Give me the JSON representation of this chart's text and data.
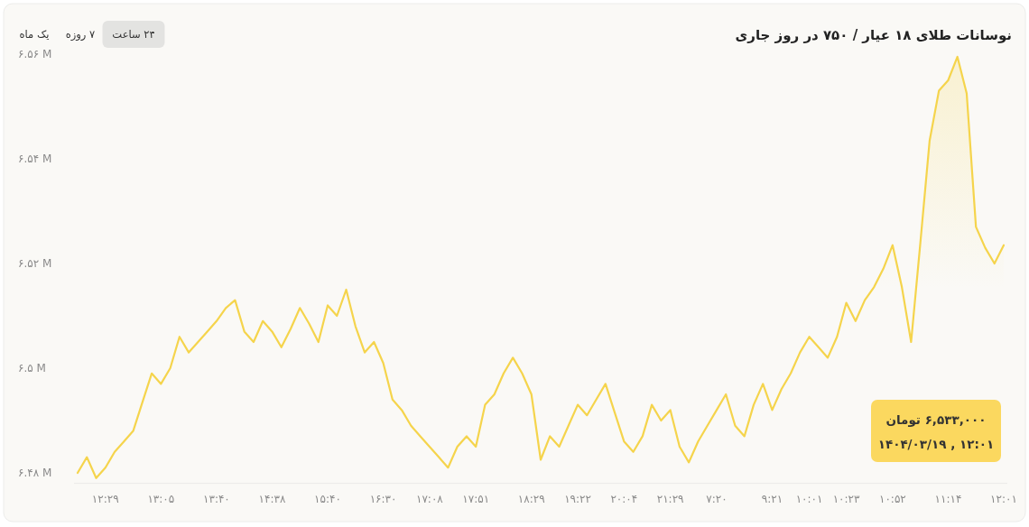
{
  "chart_data": {
    "type": "area",
    "title": "نوسانات طلای ۱۸ عیار / ۷۵۰ در روز جاری",
    "annotations": [
      "یک ماه",
      "۷ روزه",
      "۲۴ ساعت",
      "۶,۵۳۳,۰۰۰ تومان",
      "۱۴۰۴/۰۳/۱۹ , ۱۲:۰۱"
    ],
    "categories": [
      null,
      null,
      null,
      "۱۲:۲۹",
      null,
      null,
      null,
      null,
      null,
      "۱۳:۰۵",
      null,
      null,
      null,
      null,
      null,
      "۱۳:۴۰",
      null,
      null,
      null,
      null,
      null,
      "۱۴:۳۸",
      null,
      null,
      null,
      null,
      null,
      "۱۵:۴۰",
      null,
      null,
      null,
      null,
      null,
      "۱۶:۳۰",
      null,
      null,
      null,
      null,
      "۱۷:۰۸",
      null,
      null,
      null,
      null,
      "۱۷:۵۱",
      null,
      null,
      null,
      null,
      null,
      "۱۸:۲۹",
      null,
      null,
      null,
      null,
      "۱۹:۲۲",
      null,
      null,
      null,
      null,
      "۲۰:۰۴",
      null,
      null,
      null,
      null,
      "۲۱:۲۹",
      null,
      null,
      null,
      null,
      "۷:۲۰",
      null,
      null,
      null,
      null,
      null,
      "۹:۲۱",
      null,
      null,
      null,
      "۱۰:۰۱",
      null,
      null,
      null,
      "۱۰:۲۳",
      null,
      null,
      null,
      null,
      "۱۰:۵۲",
      null,
      null,
      null,
      null,
      null,
      "۱۱:۱۴",
      null,
      null,
      null,
      null,
      null,
      "۱۲:۰۱"
    ],
    "values": [
      6480000,
      6483000,
      6479000,
      6481000,
      6484000,
      6486000,
      6488000,
      6493500,
      6499000,
      6497000,
      6500000,
      6506000,
      6503000,
      6505000,
      6507000,
      6509000,
      6511500,
      6513000,
      6507000,
      6505000,
      6509000,
      6507000,
      6504000,
      6507500,
      6511500,
      6508500,
      6505000,
      6512000,
      6510000,
      6515000,
      6508000,
      6503000,
      6505000,
      6501000,
      6494000,
      6492000,
      6489000,
      6487000,
      6485000,
      6483000,
      6481000,
      6485000,
      6487000,
      6485000,
      6493000,
      6495000,
      6499000,
      6502000,
      6499000,
      6495000,
      6482500,
      6487000,
      6485000,
      6489000,
      6493000,
      6491000,
      6494000,
      6497000,
      6491500,
      6486000,
      6484000,
      6487000,
      6493000,
      6490000,
      6492000,
      6485000,
      6482000,
      6486000,
      6489000,
      6492000,
      6495000,
      6489000,
      6487000,
      6493000,
      6497000,
      6492000,
      6496000,
      6499000,
      6503000,
      6506000,
      6504000,
      6502000,
      6506000,
      6512500,
      6509000,
      6513000,
      6515500,
      6519000,
      6523500,
      6515500,
      6505000,
      6524000,
      6543500,
      6553000,
      6555000,
      6559500,
      6552500,
      6527000,
      6523000,
      6520000,
      6523500
    ],
    "color": "#f5d44c",
    "ylim": [
      6478000,
      6560000
    ],
    "yticks": [
      {
        "value": 6480000,
        "label": "۶.۴۸ M"
      },
      {
        "value": 6500000,
        "label": "۶.۵ M"
      },
      {
        "value": 6520000,
        "label": "۶.۵۲ M"
      },
      {
        "value": 6540000,
        "label": "۶.۵۴ M"
      },
      {
        "value": 6560000,
        "label": "۶.۵۶ M"
      }
    ]
  }
}
